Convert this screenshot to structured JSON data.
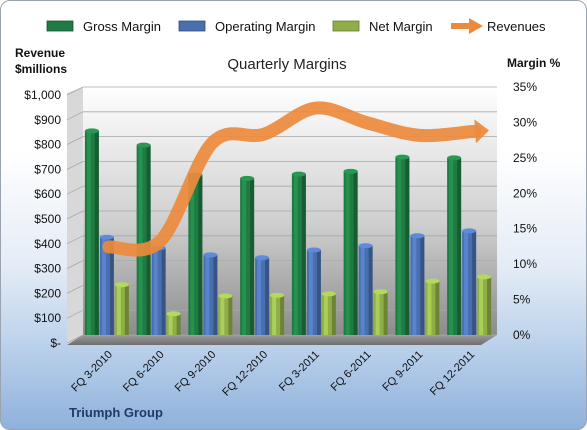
{
  "chart_data": {
    "type": "bar",
    "title": "Quarterly Margins",
    "company": "Triumph Group",
    "ylabel_left_line1": "Revenue",
    "ylabel_left_line2": "$millions",
    "ylabel_right": "Margin %",
    "categories": [
      "FQ 3-2010",
      "FQ 6-2010",
      "FQ 9-2010",
      "FQ 12-2010",
      "FQ 3-2011",
      "FQ 6-2011",
      "FQ 9-2011",
      "FQ 12-2011"
    ],
    "series": [
      {
        "name": "Gross Margin",
        "axis": "right",
        "kind": "bar",
        "color": "#1f7a43",
        "values": [
          28.8,
          26.8,
          22.6,
          22.1,
          22.7,
          23.1,
          25.1,
          25.0
        ]
      },
      {
        "name": "Operating Margin",
        "axis": "right",
        "kind": "bar",
        "color": "#4a6fae",
        "values": [
          13.8,
          12.3,
          11.3,
          10.9,
          12.0,
          12.6,
          14.0,
          14.7
        ]
      },
      {
        "name": "Net Margin",
        "axis": "right",
        "kind": "bar",
        "color": "#8fae4a",
        "values": [
          7.1,
          3.0,
          5.5,
          5.6,
          5.8,
          6.1,
          7.6,
          8.2
        ]
      },
      {
        "name": "Revenues",
        "axis": "left",
        "kind": "line",
        "color": "#ec8a3c",
        "values": [
          355,
          380,
          775,
          810,
          915,
          855,
          805,
          820
        ]
      }
    ],
    "ylim_left": [
      0,
      1000
    ],
    "ylim_right": [
      0,
      35
    ],
    "yticks_left": [
      "$-",
      "$100",
      "$200",
      "$300",
      "$400",
      "$500",
      "$600",
      "$700",
      "$800",
      "$900",
      "$1,000"
    ],
    "yticks_right": [
      "0%",
      "5%",
      "10%",
      "15%",
      "20%",
      "25%",
      "30%",
      "35%"
    ],
    "legend_position": "top",
    "grid": true
  }
}
